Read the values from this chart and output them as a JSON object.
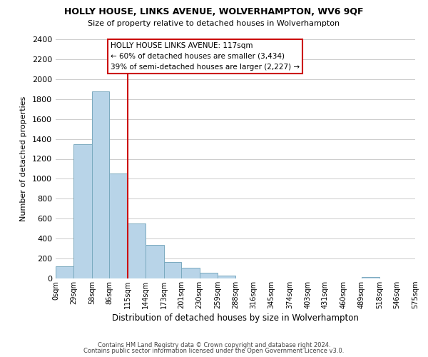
{
  "title": "HOLLY HOUSE, LINKS AVENUE, WOLVERHAMPTON, WV6 9QF",
  "subtitle": "Size of property relative to detached houses in Wolverhampton",
  "xlabel": "Distribution of detached houses by size in Wolverhampton",
  "ylabel": "Number of detached properties",
  "bar_color": "#b8d4e8",
  "bar_edge_color": "#7aaabf",
  "bar_values": [
    125,
    1350,
    1880,
    1050,
    550,
    340,
    165,
    110,
    60,
    30,
    0,
    0,
    0,
    0,
    0,
    0,
    0,
    15,
    0,
    0
  ],
  "bin_labels": [
    "0sqm",
    "29sqm",
    "58sqm",
    "86sqm",
    "115sqm",
    "144sqm",
    "173sqm",
    "201sqm",
    "230sqm",
    "259sqm",
    "288sqm",
    "316sqm",
    "345sqm",
    "374sqm",
    "403sqm",
    "431sqm",
    "460sqm",
    "489sqm",
    "518sqm",
    "546sqm",
    "575sqm"
  ],
  "bin_edges": [
    0,
    29,
    58,
    86,
    115,
    144,
    173,
    201,
    230,
    259,
    288,
    316,
    345,
    374,
    403,
    431,
    460,
    489,
    518,
    546,
    575
  ],
  "ylim": [
    0,
    2400
  ],
  "yticks": [
    0,
    200,
    400,
    600,
    800,
    1000,
    1200,
    1400,
    1600,
    1800,
    2000,
    2200,
    2400
  ],
  "vline_x": 115,
  "vline_color": "#cc0000",
  "annotation_box_text": "HOLLY HOUSE LINKS AVENUE: 117sqm\n← 60% of detached houses are smaller (3,434)\n39% of semi-detached houses are larger (2,227) →",
  "footer_line1": "Contains HM Land Registry data © Crown copyright and database right 2024.",
  "footer_line2": "Contains public sector information licensed under the Open Government Licence v3.0.",
  "background_color": "#ffffff",
  "grid_color": "#cccccc"
}
